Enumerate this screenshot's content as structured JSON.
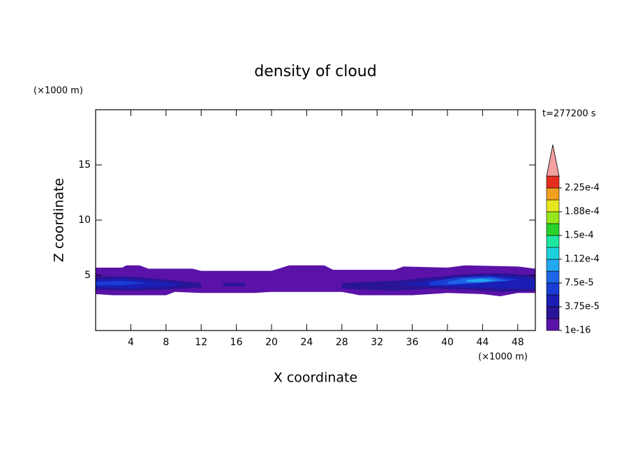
{
  "chart_data": {
    "type": "contour",
    "title": "density of cloud",
    "x_label": "X coordinate",
    "y_label": "Z coordinate",
    "x_unit": "(×1000 m)",
    "y_unit": "(×1000 m)",
    "time_label": "t=277200 s",
    "xlim": [
      0,
      50
    ],
    "ylim": [
      0,
      20
    ],
    "xticks": [
      4,
      8,
      12,
      16,
      20,
      24,
      28,
      32,
      36,
      40,
      44,
      48
    ],
    "yticks": [
      5,
      10,
      15
    ],
    "colorbar": {
      "lim": [
        1e-16,
        0.00024375
      ],
      "ticks": [
        1e-16,
        {
          "value": 3.75e-05,
          "label": "3.75e-5"
        },
        {
          "value": 7.5e-05,
          "label": "7.5e-5"
        },
        {
          "value": 0.0001125,
          "label": "1.12e-4"
        },
        {
          "value": 0.00015,
          "label": "1.5e-4"
        },
        {
          "value": 0.0001875,
          "label": "1.88e-4"
        },
        {
          "value": 0.000225,
          "label": "2.25e-4"
        }
      ],
      "colors": [
        "#5a12a8",
        "#2a1496",
        "#1a1eb4",
        "#1a3cd2",
        "#1e64e6",
        "#22a8f0",
        "#1ed2dc",
        "#1ee6a0",
        "#28d228",
        "#96e61e",
        "#e6e61e",
        "#f0a01e",
        "#e62d1e"
      ],
      "extend_color": "#f4a0a0"
    },
    "contours": [
      {
        "level": 1e-16,
        "x": [
          0,
          3,
          3.5,
          5,
          6,
          11,
          12,
          20,
          22,
          26,
          27,
          34,
          35,
          40,
          42,
          48,
          50,
          50,
          48,
          46,
          44,
          40,
          36,
          30,
          28,
          20,
          18,
          12,
          9,
          8,
          2,
          0
        ],
        "z": [
          5.7,
          5.7,
          5.9,
          5.9,
          5.6,
          5.6,
          5.4,
          5.4,
          5.9,
          5.9,
          5.5,
          5.5,
          5.8,
          5.7,
          5.9,
          5.8,
          5.6,
          3.4,
          3.4,
          3.1,
          3.3,
          3.4,
          3.2,
          3.2,
          3.5,
          3.5,
          3.4,
          3.4,
          3.5,
          3.2,
          3.2,
          3.3
        ]
      },
      {
        "level": 2.5e-05,
        "x": [
          0,
          4,
          8,
          12,
          12,
          8,
          4,
          0
        ],
        "z": [
          4.9,
          4.9,
          4.6,
          4.3,
          3.9,
          3.7,
          3.6,
          3.7
        ]
      },
      {
        "level": 2.5e-05,
        "x": [
          14.5,
          17,
          17,
          14.5
        ],
        "z": [
          4.3,
          4.3,
          4.0,
          4.0
        ]
      },
      {
        "level": 2.5e-05,
        "x": [
          28,
          34,
          38,
          42,
          46,
          50,
          50,
          46,
          42,
          38,
          34,
          28
        ],
        "z": [
          4.3,
          4.5,
          4.8,
          5.1,
          5.2,
          5.0,
          3.6,
          3.5,
          3.7,
          3.8,
          3.6,
          3.8
        ]
      },
      {
        "level": 4.5e-05,
        "x": [
          0,
          3,
          8,
          10,
          9,
          4,
          0
        ],
        "z": [
          4.6,
          4.7,
          4.4,
          4.2,
          4.0,
          3.8,
          3.9
        ]
      },
      {
        "level": 4.5e-05,
        "x": [
          34,
          36,
          40,
          44,
          48,
          50,
          50,
          46,
          42,
          38
        ],
        "z": [
          4.2,
          4.3,
          4.7,
          5.0,
          4.9,
          4.6,
          3.8,
          3.8,
          3.9,
          4.0
        ]
      },
      {
        "level": 6.5e-05,
        "x": [
          0,
          3,
          6,
          3,
          0
        ],
        "z": [
          4.4,
          4.5,
          4.3,
          4.1,
          4.1
        ]
      },
      {
        "level": 6.5e-05,
        "x": [
          38,
          41,
          45,
          48,
          44,
          40,
          38
        ],
        "z": [
          4.4,
          4.8,
          4.9,
          4.6,
          4.3,
          4.1,
          4.1
        ]
      },
      {
        "level": 8.5e-05,
        "x": [
          40,
          42,
          45,
          47,
          43,
          40
        ],
        "z": [
          4.4,
          4.75,
          4.8,
          4.5,
          4.3,
          4.2
        ]
      },
      {
        "level": 0.000105,
        "x": [
          42,
          44,
          45.5,
          44,
          42.5
        ],
        "z": [
          4.55,
          4.7,
          4.55,
          4.4,
          4.4
        ]
      }
    ]
  }
}
